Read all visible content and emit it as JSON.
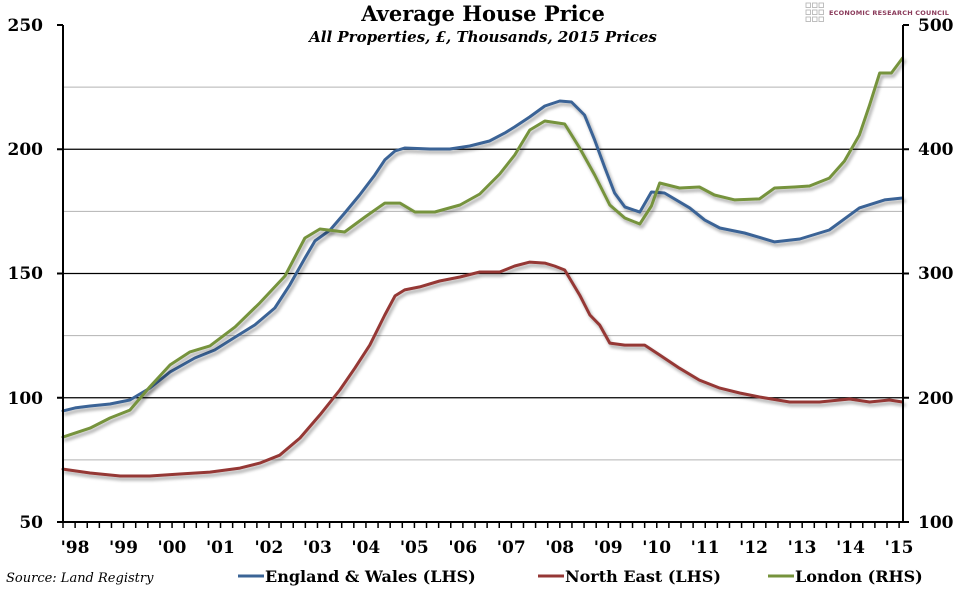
{
  "logo": {
    "text": "ECONOMIC RESEARCH COUNCIL"
  },
  "colors": {
    "england_wales": "#3b6496",
    "north_east": "#953735",
    "london": "#76933c",
    "gridline_major": "#000000",
    "gridline_minor": "#b3b3b3"
  },
  "chart_data": {
    "type": "line",
    "title": "Average House Price",
    "subtitle": "All Properties, £, Thousands, 2015 Prices",
    "source": "Source: Land Registry",
    "xlabel": "",
    "ylabel": "",
    "xlim": [
      1998.0,
      2015.33
    ],
    "ylim_left": [
      50,
      250
    ],
    "ylim_right": [
      100,
      500
    ],
    "yticks_left": [
      "250",
      "200",
      "150",
      "100",
      "50"
    ],
    "yticks_right": [
      "500",
      "400",
      "300",
      "200",
      "100"
    ],
    "xtick_labels": [
      "'98",
      "'99",
      "'00",
      "'01",
      "'02",
      "'03",
      "'04",
      "'05",
      "'06",
      "'07",
      "'08",
      "'09",
      "'10",
      "'11",
      "'12",
      "'13",
      "'14",
      "'15"
    ],
    "grid": true,
    "legend_position": "bottom",
    "series": [
      {
        "name": "England & Wales (LHS)",
        "axis": "left",
        "points": [
          [
            1998.0,
            94.7
          ],
          [
            1998.25,
            95.9
          ],
          [
            1998.56,
            96.7
          ],
          [
            1998.97,
            97.5
          ],
          [
            1999.38,
            99.1
          ],
          [
            1999.79,
            103.9
          ],
          [
            2000.21,
            110.4
          ],
          [
            2000.72,
            116.0
          ],
          [
            2001.13,
            119.2
          ],
          [
            2001.55,
            124.4
          ],
          [
            2001.96,
            129.3
          ],
          [
            2002.37,
            136.1
          ],
          [
            2002.68,
            145.4
          ],
          [
            2002.99,
            156.2
          ],
          [
            2003.2,
            163.1
          ],
          [
            2003.51,
            167.5
          ],
          [
            2003.81,
            174.3
          ],
          [
            2004.12,
            181.6
          ],
          [
            2004.43,
            189.6
          ],
          [
            2004.64,
            195.7
          ],
          [
            2004.85,
            199.3
          ],
          [
            2005.05,
            200.5
          ],
          [
            2005.57,
            200.1
          ],
          [
            2005.98,
            200.1
          ],
          [
            2006.39,
            201.3
          ],
          [
            2006.8,
            203.3
          ],
          [
            2007.11,
            206.5
          ],
          [
            2007.32,
            209.0
          ],
          [
            2007.63,
            213.0
          ],
          [
            2007.94,
            217.4
          ],
          [
            2008.25,
            219.4
          ],
          [
            2008.49,
            219.0
          ],
          [
            2008.76,
            213.8
          ],
          [
            2008.97,
            203.7
          ],
          [
            2009.18,
            192.5
          ],
          [
            2009.38,
            182.4
          ],
          [
            2009.59,
            176.8
          ],
          [
            2009.9,
            174.7
          ],
          [
            2010.14,
            182.8
          ],
          [
            2010.41,
            182.4
          ],
          [
            2010.93,
            176.4
          ],
          [
            2011.24,
            171.5
          ],
          [
            2011.55,
            168.3
          ],
          [
            2012.06,
            166.3
          ],
          [
            2012.68,
            162.7
          ],
          [
            2013.2,
            163.9
          ],
          [
            2013.81,
            167.5
          ],
          [
            2014.43,
            176.4
          ],
          [
            2014.95,
            179.6
          ],
          [
            2015.32,
            180.4
          ]
        ]
      },
      {
        "name": "North East (LHS)",
        "axis": "left",
        "points": [
          [
            1998.0,
            71.3
          ],
          [
            1998.56,
            69.7
          ],
          [
            1999.18,
            68.5
          ],
          [
            1999.79,
            68.5
          ],
          [
            2000.41,
            69.3
          ],
          [
            2001.03,
            70.1
          ],
          [
            2001.65,
            71.7
          ],
          [
            2002.06,
            73.7
          ],
          [
            2002.47,
            76.9
          ],
          [
            2002.89,
            83.8
          ],
          [
            2003.3,
            93.1
          ],
          [
            2003.71,
            103.1
          ],
          [
            2004.02,
            111.9
          ],
          [
            2004.33,
            121.2
          ],
          [
            2004.64,
            133.3
          ],
          [
            2004.85,
            141.0
          ],
          [
            2005.05,
            143.4
          ],
          [
            2005.36,
            144.6
          ],
          [
            2005.77,
            147.0
          ],
          [
            2006.19,
            148.6
          ],
          [
            2006.6,
            150.6
          ],
          [
            2007.01,
            150.6
          ],
          [
            2007.32,
            153.0
          ],
          [
            2007.63,
            154.6
          ],
          [
            2007.94,
            154.2
          ],
          [
            2008.14,
            153.0
          ],
          [
            2008.35,
            151.4
          ],
          [
            2008.66,
            141.3
          ],
          [
            2008.87,
            133.3
          ],
          [
            2009.07,
            129.3
          ],
          [
            2009.28,
            122.0
          ],
          [
            2009.59,
            121.2
          ],
          [
            2010.0,
            121.2
          ],
          [
            2010.31,
            117.2
          ],
          [
            2010.72,
            111.9
          ],
          [
            2011.13,
            107.1
          ],
          [
            2011.55,
            103.9
          ],
          [
            2011.96,
            101.9
          ],
          [
            2012.37,
            100.3
          ],
          [
            2012.99,
            98.3
          ],
          [
            2013.61,
            98.3
          ],
          [
            2014.23,
            99.5
          ],
          [
            2014.64,
            98.3
          ],
          [
            2015.05,
            99.1
          ],
          [
            2015.32,
            98.3
          ]
        ]
      },
      {
        "name": "London (RHS)",
        "axis": "right",
        "points": [
          [
            1998.0,
            168.3
          ],
          [
            1998.56,
            175.6
          ],
          [
            1998.97,
            183.7
          ],
          [
            1999.38,
            190.1
          ],
          [
            1999.79,
            208.7
          ],
          [
            2000.21,
            226.4
          ],
          [
            2000.62,
            236.9
          ],
          [
            2001.03,
            241.7
          ],
          [
            2001.55,
            257.0
          ],
          [
            2002.06,
            276.3
          ],
          [
            2002.58,
            298.0
          ],
          [
            2002.99,
            328.6
          ],
          [
            2003.3,
            335.8
          ],
          [
            2003.81,
            333.4
          ],
          [
            2004.23,
            345.5
          ],
          [
            2004.64,
            356.7
          ],
          [
            2004.95,
            356.7
          ],
          [
            2005.26,
            349.5
          ],
          [
            2005.67,
            349.5
          ],
          [
            2006.19,
            355.1
          ],
          [
            2006.6,
            364.0
          ],
          [
            2007.01,
            380.1
          ],
          [
            2007.32,
            395.4
          ],
          [
            2007.63,
            415.5
          ],
          [
            2007.94,
            422.7
          ],
          [
            2008.35,
            420.3
          ],
          [
            2008.66,
            400.9
          ],
          [
            2008.97,
            379.3
          ],
          [
            2009.28,
            355.1
          ],
          [
            2009.59,
            344.7
          ],
          [
            2009.9,
            339.8
          ],
          [
            2010.14,
            354.3
          ],
          [
            2010.31,
            372.8
          ],
          [
            2010.72,
            368.8
          ],
          [
            2011.13,
            369.6
          ],
          [
            2011.44,
            363.2
          ],
          [
            2011.86,
            359.2
          ],
          [
            2012.37,
            360.0
          ],
          [
            2012.68,
            368.8
          ],
          [
            2013.09,
            369.6
          ],
          [
            2013.4,
            370.4
          ],
          [
            2013.81,
            376.8
          ],
          [
            2014.12,
            390.5
          ],
          [
            2014.43,
            411.5
          ],
          [
            2014.64,
            435.6
          ],
          [
            2014.85,
            461.4
          ],
          [
            2015.09,
            461.4
          ],
          [
            2015.32,
            473.4
          ]
        ]
      }
    ]
  }
}
